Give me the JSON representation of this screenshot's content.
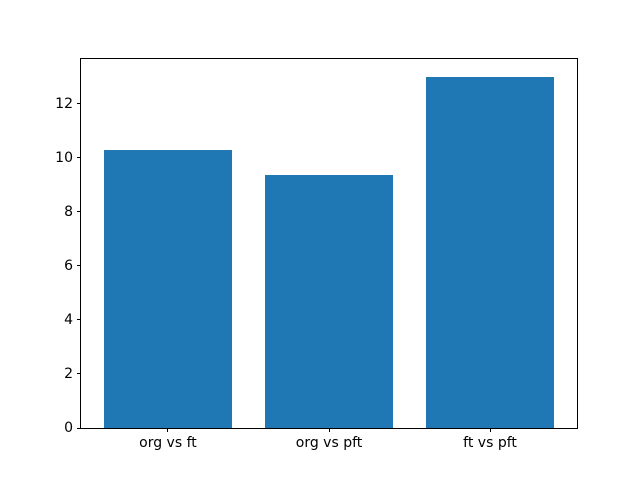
{
  "chart_data": {
    "type": "bar",
    "title": "",
    "xlabel": "",
    "ylabel": "",
    "categories": [
      "org vs ft",
      "org vs pft",
      "ft vs pft"
    ],
    "values": [
      10.3,
      9.35,
      13.0
    ],
    "ylim": [
      0,
      13.65
    ],
    "yticks": [
      0,
      2,
      4,
      6,
      8,
      10,
      12
    ],
    "ytick_labels": [
      "0",
      "2",
      "4",
      "6",
      "8",
      "10",
      "12"
    ],
    "bar_color": "#1f77b4",
    "bar_width_fraction": 0.8,
    "grid": false,
    "legend": false,
    "background_color": "#ffffff",
    "axis_color": "#000000",
    "text_color": "#000000"
  }
}
